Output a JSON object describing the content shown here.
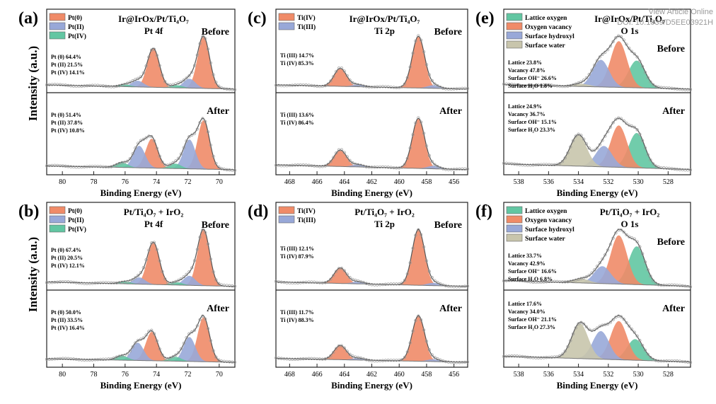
{
  "watermark": {
    "line1": "View Article Online",
    "line2": "DOI: 10.1039/D5EE03921H"
  },
  "ylabels": [
    "Intensity (a.u.)",
    "Intensity (a.u.)"
  ],
  "chart_data": [
    {
      "label": "(a)",
      "element": "Pt",
      "title_lines": [
        "Ir@IrOx/Pt/Ti₄O₇",
        "Pt 4f"
      ],
      "xlabel": "Binding Energy (eV)",
      "xlim": [
        81,
        69
      ],
      "xticks": [
        "80",
        "78",
        "76",
        "74",
        "72",
        "70"
      ],
      "legend": [
        "Pt(0)",
        "Pt(II)",
        "Pt(IV)"
      ],
      "colors": [
        "#f08b68",
        "#98a8d8",
        "#62c6a2"
      ],
      "components": [
        {
          "name": "Pt(0)",
          "peaks": [
            [
              71.0,
              1.0
            ],
            [
              74.2,
              0.75
            ]
          ]
        },
        {
          "name": "Pt(II)",
          "peaks": [
            [
              71.9,
              0.18
            ],
            [
              75.2,
              0.12
            ]
          ]
        },
        {
          "name": "Pt(IV)",
          "peaks": [
            [
              72.7,
              0.05
            ],
            [
              76.0,
              0.04
            ]
          ]
        }
      ],
      "before": {
        "state": "Before",
        "ann": [
          "Pt (0) 64.4%",
          "Pt (II) 21.5%",
          "Pt (IV) 14.1%"
        ]
      },
      "after": {
        "state": "After",
        "ann": [
          "Pt (0) 51.4%",
          "Pt (II) 37.8%",
          "Pt (IV) 10.8%"
        ]
      },
      "after_components": [
        {
          "name": "Pt(0)",
          "peaks": [
            [
              71.0,
              1.0
            ],
            [
              74.3,
              0.6
            ]
          ]
        },
        {
          "name": "Pt(II)",
          "peaks": [
            [
              71.9,
              0.6
            ],
            [
              75.1,
              0.45
            ]
          ]
        },
        {
          "name": "Pt(IV)",
          "peaks": [
            [
              72.8,
              0.1
            ],
            [
              76.2,
              0.1
            ]
          ]
        }
      ]
    },
    {
      "label": "(c)",
      "element": "Ti",
      "title_lines": [
        "Ir@IrOx/Pt/Ti₄O₇",
        "Ti 2p"
      ],
      "xlabel": "Binding Energy (eV)",
      "xlim": [
        469,
        455
      ],
      "xticks": [
        "468",
        "466",
        "464",
        "462",
        "460",
        "458",
        "456"
      ],
      "legend": [
        "Ti(IV)",
        "Ti(III)"
      ],
      "colors": [
        "#f08b68",
        "#98a8d8"
      ],
      "components": [
        {
          "name": "Ti(IV)",
          "peaks": [
            [
              458.6,
              1.0
            ],
            [
              464.3,
              0.35
            ]
          ]
        },
        {
          "name": "Ti(III)",
          "peaks": [
            [
              457.5,
              0.06
            ],
            [
              463.0,
              0.04
            ]
          ]
        }
      ],
      "before": {
        "state": "Before",
        "ann": [
          "Ti (III) 14.7%",
          "Ti (IV) 85.3%"
        ]
      },
      "after": {
        "state": "After",
        "ann": [
          "Ti (III) 13.6%",
          "Ti (IV) 86.4%"
        ]
      },
      "after_components": [
        {
          "name": "Ti(IV)",
          "peaks": [
            [
              458.6,
              0.85
            ],
            [
              464.3,
              0.28
            ]
          ]
        },
        {
          "name": "Ti(III)",
          "peaks": [
            [
              457.5,
              0.05
            ],
            [
              463.0,
              0.04
            ]
          ]
        }
      ]
    },
    {
      "label": "(e)",
      "element": "O",
      "title_lines": [
        "Ir@IrOx/Pt/Ti₄O₇",
        "O 1s"
      ],
      "xlabel": "Binding Energy (eV)",
      "xlim": [
        539,
        526.5
      ],
      "xticks": [
        "538",
        "536",
        "534",
        "532",
        "530",
        "528"
      ],
      "legend": [
        "Lattice oxygen",
        "Oxygen vacancy",
        "Surface hydroxyl",
        "Surface water"
      ],
      "colors": [
        "#62c6a2",
        "#f08b68",
        "#98a8d8",
        "#c8c5ac"
      ],
      "components": [
        {
          "name": "Lattice oxygen",
          "peaks": [
            [
              530.1,
              0.5
            ]
          ]
        },
        {
          "name": "Oxygen vacancy",
          "peaks": [
            [
              531.3,
              0.85
            ]
          ]
        },
        {
          "name": "Surface hydroxyl",
          "peaks": [
            [
              532.5,
              0.5
            ]
          ]
        },
        {
          "name": "Surface water",
          "peaks": [
            [
              533.8,
              0.05
            ]
          ]
        }
      ],
      "before": {
        "state": "Before",
        "ann": [
          "Lattice 23.8%",
          "Vacancy 47.8%",
          "Surface OH⁻ 26.6%",
          "Surface H₂O 1.8%"
        ]
      },
      "after": {
        "state": "After",
        "ann": [
          "Lattice 24.9%",
          "Vacancy 36.7%",
          "Surface OH⁻ 15.1%",
          "Surface H₂O 23.3%"
        ]
      },
      "after_components": [
        {
          "name": "Lattice oxygen",
          "peaks": [
            [
              530.1,
              0.5
            ]
          ]
        },
        {
          "name": "Oxygen vacancy",
          "peaks": [
            [
              531.3,
              0.6
            ]
          ]
        },
        {
          "name": "Surface hydroxyl",
          "peaks": [
            [
              532.3,
              0.3
            ]
          ]
        },
        {
          "name": "Surface water",
          "peaks": [
            [
              534.0,
              0.45
            ]
          ]
        }
      ]
    },
    {
      "label": "(b)",
      "element": "Pt",
      "title_lines": [
        "Pt/Ti₄O₇ + IrO₂",
        "Pt 4f"
      ],
      "xlabel": "Binding Energy (eV)",
      "xlim": [
        81,
        69
      ],
      "xticks": [
        "80",
        "78",
        "76",
        "74",
        "72",
        "70"
      ],
      "legend": [
        "Pt(0)",
        "Pt(II)",
        "Pt(IV)"
      ],
      "colors": [
        "#f08b68",
        "#98a8d8",
        "#62c6a2"
      ],
      "components": [
        {
          "name": "Pt(0)",
          "peaks": [
            [
              71.0,
              1.0
            ],
            [
              74.2,
              0.75
            ]
          ]
        },
        {
          "name": "Pt(II)",
          "peaks": [
            [
              71.9,
              0.17
            ],
            [
              75.1,
              0.12
            ]
          ]
        },
        {
          "name": "Pt(IV)",
          "peaks": [
            [
              72.7,
              0.05
            ],
            [
              76.0,
              0.04
            ]
          ]
        }
      ],
      "before": {
        "state": "Before",
        "ann": [
          "Pt (0) 67.4%",
          "Pt (II) 20.5%",
          "Pt (IV) 12.1%"
        ]
      },
      "after": {
        "state": "After",
        "ann": [
          "Pt (0) 50.0%",
          "Pt (II) 33.5%",
          "Pt (IV) 16.4%"
        ]
      },
      "after_components": [
        {
          "name": "Pt(0)",
          "peaks": [
            [
              71.0,
              1.0
            ],
            [
              74.3,
              0.65
            ]
          ]
        },
        {
          "name": "Pt(II)",
          "peaks": [
            [
              71.9,
              0.55
            ],
            [
              75.2,
              0.4
            ]
          ]
        },
        {
          "name": "Pt(IV)",
          "peaks": [
            [
              72.8,
              0.1
            ],
            [
              76.2,
              0.1
            ]
          ]
        }
      ]
    },
    {
      "label": "(d)",
      "element": "Ti",
      "title_lines": [
        "Pt/Ti₄O₇ + IrO₂",
        "Ti 2p"
      ],
      "xlabel": "Binding Energy (eV)",
      "xlim": [
        469,
        455
      ],
      "xticks": [
        "468",
        "466",
        "464",
        "462",
        "460",
        "458",
        "456"
      ],
      "legend": [
        "Ti(IV)",
        "Ti(III)"
      ],
      "colors": [
        "#f08b68",
        "#98a8d8"
      ],
      "components": [
        {
          "name": "Ti(IV)",
          "peaks": [
            [
              458.6,
              1.0
            ],
            [
              464.3,
              0.28
            ]
          ]
        },
        {
          "name": "Ti(III)",
          "peaks": [
            [
              457.5,
              0.05
            ],
            [
              463.0,
              0.04
            ]
          ]
        }
      ],
      "before": {
        "state": "Before",
        "ann": [
          "Ti (III) 12.1%",
          "Ti (IV) 87.9%"
        ]
      },
      "after": {
        "state": "After",
        "ann": [
          "Ti (III) 11.7%",
          "Ti (IV) 88.3%"
        ]
      },
      "after_components": [
        {
          "name": "Ti(IV)",
          "peaks": [
            [
              458.6,
              0.95
            ],
            [
              464.3,
              0.3
            ]
          ]
        },
        {
          "name": "Ti(III)",
          "peaks": [
            [
              457.5,
              0.05
            ],
            [
              463.0,
              0.04
            ]
          ]
        }
      ]
    },
    {
      "label": "(f)",
      "element": "O",
      "title_lines": [
        "Pt/Ti₄O₇ + IrO₂",
        "O 1s"
      ],
      "xlabel": "Binding Energy (eV)",
      "xlim": [
        539,
        526.5
      ],
      "xticks": [
        "538",
        "536",
        "534",
        "532",
        "530",
        "528"
      ],
      "legend": [
        "Lattice oxygen",
        "Oxygen vacancy",
        "Surface hydroxyl",
        "Surface water"
      ],
      "colors": [
        "#62c6a2",
        "#f08b68",
        "#98a8d8",
        "#c8c5ac"
      ],
      "components": [
        {
          "name": "Lattice oxygen",
          "peaks": [
            [
              530.1,
              0.55
            ]
          ]
        },
        {
          "name": "Oxygen vacancy",
          "peaks": [
            [
              531.3,
              0.7
            ]
          ]
        },
        {
          "name": "Surface hydroxyl",
          "peaks": [
            [
              532.4,
              0.25
            ]
          ]
        },
        {
          "name": "Surface water",
          "peaks": [
            [
              533.8,
              0.06
            ]
          ]
        }
      ],
      "before": {
        "state": "Before",
        "ann": [
          "Lattice 33.7%",
          "Vacancy 42.9%",
          "Surface OH⁻ 16.6%",
          "Surface H₂O 6.8%"
        ]
      },
      "after": {
        "state": "After",
        "ann": [
          "Lattice 17.6%",
          "Vacancy 34.0%",
          "Surface OH⁻ 21.1%",
          "Surface H₂O 27.3%"
        ]
      },
      "after_components": [
        {
          "name": "Lattice oxygen",
          "peaks": [
            [
              530.2,
              0.3
            ]
          ]
        },
        {
          "name": "Oxygen vacancy",
          "peaks": [
            [
              531.3,
              0.55
            ]
          ]
        },
        {
          "name": "Surface hydroxyl",
          "peaks": [
            [
              532.5,
              0.4
            ]
          ]
        },
        {
          "name": "Surface water",
          "peaks": [
            [
              533.9,
              0.5
            ]
          ]
        }
      ]
    }
  ]
}
